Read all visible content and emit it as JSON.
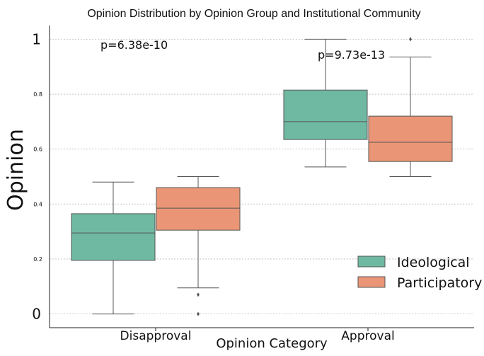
{
  "chart_data": {
    "type": "box",
    "title": "Opinion Distribution by Opinion Group and Institutional Community",
    "xlabel": "Opinion Category",
    "ylabel": "Opinion",
    "ylim": [
      -0.05,
      1.05
    ],
    "grid": true,
    "legend_placement": "bottom-right",
    "categories": [
      "Disapproval",
      "Approval"
    ],
    "y_ticks": [
      {
        "value": 0,
        "label": "0",
        "size": "large"
      },
      {
        "value": 0.2,
        "label": "0.2",
        "size": "small"
      },
      {
        "value": 0.4,
        "label": "0.4",
        "size": "small"
      },
      {
        "value": 0.6,
        "label": "0.6",
        "size": "small"
      },
      {
        "value": 0.8,
        "label": "0.8",
        "size": "small"
      },
      {
        "value": 1,
        "label": "1",
        "size": "large"
      }
    ],
    "series": [
      {
        "name": "Ideological",
        "color": "#6fb9a3",
        "boxes": [
          {
            "whisker_low": 0.0,
            "q1": 0.195,
            "median": 0.295,
            "q3": 0.365,
            "whisker_high": 0.48,
            "outliers": []
          },
          {
            "whisker_low": 0.535,
            "q1": 0.635,
            "median": 0.7,
            "q3": 0.815,
            "whisker_high": 1.0,
            "outliers": []
          }
        ]
      },
      {
        "name": "Participatory",
        "color": "#ea9676",
        "boxes": [
          {
            "whisker_low": 0.095,
            "q1": 0.305,
            "median": 0.385,
            "q3": 0.46,
            "whisker_high": 0.5,
            "outliers": [
              0.07,
              0.0
            ]
          },
          {
            "whisker_low": 0.5,
            "q1": 0.555,
            "median": 0.625,
            "q3": 0.72,
            "whisker_high": 0.935,
            "outliers": [
              1.0
            ]
          }
        ]
      }
    ],
    "annotations": [
      {
        "category": "Disapproval",
        "text": "p=6.38e-10"
      },
      {
        "category": "Approval",
        "text": "p=9.73e-13"
      }
    ]
  }
}
